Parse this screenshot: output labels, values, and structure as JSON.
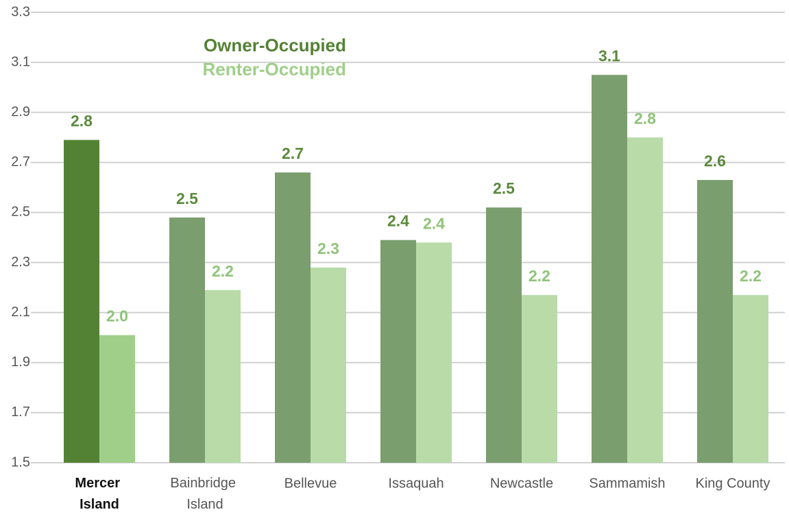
{
  "chart_data": {
    "type": "bar",
    "categories": [
      "Mercer Island",
      "Bainbridge Island",
      "Bellevue",
      "Issaquah",
      "Newcastle",
      "Sammamish",
      "King County"
    ],
    "highlight": 0,
    "series": [
      {
        "name": "Owner-Occupied",
        "color": "#7a9e6e",
        "highlight_color": "#548235",
        "label_color": "#5a8a3c",
        "values": [
          2.79,
          2.48,
          2.66,
          2.39,
          2.52,
          3.05,
          2.63
        ],
        "value_labels": [
          "2.8",
          "2.5",
          "2.7",
          "2.4",
          "2.5",
          "3.1",
          "2.6"
        ]
      },
      {
        "name": "Renter-Occupied",
        "color": "#b8dba8",
        "highlight_color": "#a0cf8a",
        "label_color": "#8fc47a",
        "values": [
          2.01,
          2.19,
          2.28,
          2.38,
          2.17,
          2.8,
          2.17
        ],
        "value_labels": [
          "2.0",
          "2.2",
          "2.3",
          "2.4",
          "2.2",
          "2.8",
          "2.2"
        ]
      }
    ],
    "ylim": [
      1.5,
      3.3
    ],
    "yticks": [
      1.5,
      1.7,
      1.9,
      2.1,
      2.3,
      2.5,
      2.7,
      2.9,
      3.1,
      3.3
    ],
    "grid": true
  }
}
